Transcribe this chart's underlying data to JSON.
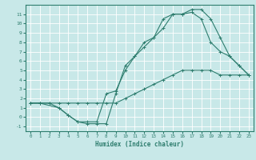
{
  "xlabel": "Humidex (Indice chaleur)",
  "background_color": "#c8e8e8",
  "grid_color": "#b8d8d8",
  "line_color": "#2e7d6e",
  "xlim": [
    -0.5,
    23.5
  ],
  "ylim": [
    -1.5,
    12.0
  ],
  "xticks": [
    0,
    1,
    2,
    3,
    4,
    5,
    6,
    7,
    8,
    9,
    10,
    11,
    12,
    13,
    14,
    15,
    16,
    17,
    18,
    19,
    20,
    21,
    22,
    23
  ],
  "yticks": [
    -1,
    0,
    1,
    2,
    3,
    4,
    5,
    6,
    7,
    8,
    9,
    10,
    11
  ],
  "line1_x": [
    0,
    1,
    2,
    3,
    4,
    5,
    6,
    7,
    8,
    9,
    10,
    11,
    12,
    13,
    14,
    15,
    16,
    17,
    18,
    19,
    20,
    21,
    22,
    23
  ],
  "line1_y": [
    1.5,
    1.5,
    1.5,
    1.5,
    1.5,
    1.5,
    1.5,
    1.5,
    1.5,
    1.5,
    2.0,
    2.5,
    3.0,
    3.5,
    4.0,
    4.5,
    5.0,
    5.0,
    5.0,
    5.0,
    4.5,
    4.5,
    4.5,
    4.5
  ],
  "line2_x": [
    0,
    1,
    3,
    4,
    5,
    6,
    7,
    8,
    9,
    10,
    11,
    12,
    13,
    14,
    15,
    16,
    17,
    18,
    19,
    20,
    21,
    22,
    23
  ],
  "line2_y": [
    1.5,
    1.5,
    1.0,
    0.2,
    -0.5,
    -0.7,
    -0.7,
    -0.7,
    2.5,
    5.5,
    6.5,
    8.0,
    8.5,
    9.5,
    11.0,
    11.0,
    11.5,
    11.5,
    10.5,
    8.5,
    6.5,
    5.5,
    4.5
  ],
  "line3_x": [
    0,
    1,
    2,
    3,
    4,
    5,
    6,
    7,
    8,
    9,
    10,
    11,
    12,
    13,
    14,
    15,
    16,
    17,
    18,
    19,
    20,
    21,
    22,
    23
  ],
  "line3_y": [
    1.5,
    1.5,
    1.5,
    1.0,
    0.2,
    -0.5,
    -0.5,
    -0.5,
    2.5,
    2.8,
    5.0,
    6.5,
    7.5,
    8.5,
    10.5,
    11.0,
    11.0,
    11.2,
    10.5,
    8.0,
    7.0,
    6.5,
    5.5,
    4.5
  ]
}
